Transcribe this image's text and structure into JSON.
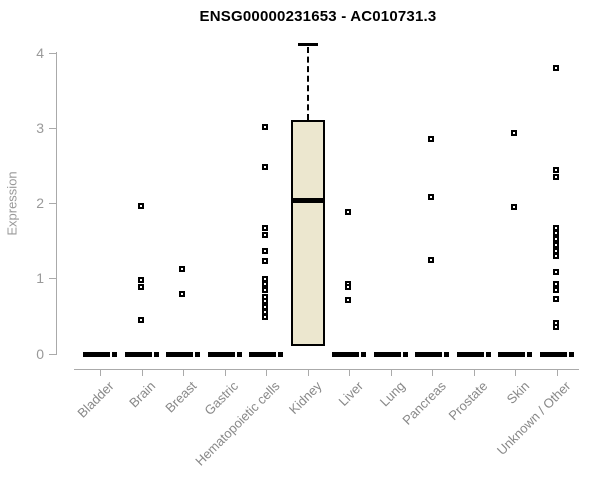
{
  "title": "ENSG00000231653 - AC010731.3",
  "y_axis": {
    "label": "Expression",
    "ticks": [
      "0",
      "1",
      "2",
      "3",
      "4"
    ]
  },
  "colors": {
    "box_fill": "#ECE7CF",
    "box_border": "#000000",
    "median": "#000000",
    "axis": "#AAAAAA",
    "ytick_label": "#999999",
    "category_label": "#888888",
    "title": "#000000",
    "point_border": "#000000",
    "point_fill": "#FFFFFF"
  },
  "chart_data": {
    "type": "boxplot",
    "title": "ENSG00000231653 - AC010731.3",
    "xlabel": "",
    "ylabel": "Expression",
    "ylim": [
      0,
      4
    ],
    "yticks": [
      0,
      1,
      2,
      3,
      4
    ],
    "grid": false,
    "legend_position": "none",
    "categories": [
      "Bladder",
      "Brain",
      "Breast",
      "Gastric",
      "Hematopoietic cells",
      "Kidney",
      "Liver",
      "Lung",
      "Pancreas",
      "Prostate",
      "Skin",
      "Unknown / Other"
    ],
    "boxes": [
      {
        "category": "Bladder",
        "low": 0,
        "q1": 0,
        "median": 0,
        "q3": 0,
        "high": 0
      },
      {
        "category": "Brain",
        "low": 0,
        "q1": 0,
        "median": 0,
        "q3": 0,
        "high": 0
      },
      {
        "category": "Breast",
        "low": 0,
        "q1": 0,
        "median": 0,
        "q3": 0,
        "high": 0
      },
      {
        "category": "Gastric",
        "low": 0,
        "q1": 0,
        "median": 0,
        "q3": 0,
        "high": 0
      },
      {
        "category": "Hematopoietic cells",
        "low": 0,
        "q1": 0,
        "median": 0,
        "q3": 0,
        "high": 0
      },
      {
        "category": "Kidney",
        "low": 0.1,
        "q1": 0.1,
        "median": 2.03,
        "q3": 3.11,
        "high": 4.13
      },
      {
        "category": "Liver",
        "low": 0,
        "q1": 0,
        "median": 0,
        "q3": 0,
        "high": 0
      },
      {
        "category": "Lung",
        "low": 0,
        "q1": 0,
        "median": 0,
        "q3": 0,
        "high": 0
      },
      {
        "category": "Pancreas",
        "low": 0,
        "q1": 0,
        "median": 0,
        "q3": 0,
        "high": 0
      },
      {
        "category": "Prostate",
        "low": 0,
        "q1": 0,
        "median": 0,
        "q3": 0,
        "high": 0
      },
      {
        "category": "Skin",
        "low": 0,
        "q1": 0,
        "median": 0,
        "q3": 0,
        "high": 0
      },
      {
        "category": "Unknown / Other",
        "low": 0,
        "q1": 0,
        "median": 0,
        "q3": 0,
        "high": 0
      }
    ],
    "outlier_points": [
      {
        "category": "Brain",
        "values": [
          1.96,
          0.98,
          0.89,
          0.44
        ]
      },
      {
        "category": "Breast",
        "values": [
          1.12,
          0.79
        ]
      },
      {
        "category": "Hematopoietic cells",
        "values": [
          3.02,
          2.48,
          1.67,
          1.58,
          1.36,
          1.23,
          0.99,
          0.92,
          0.85,
          0.75,
          0.7,
          0.62,
          0.55,
          0.48
        ]
      },
      {
        "category": "Liver",
        "values": [
          1.88,
          0.93,
          0.89,
          0.71
        ]
      },
      {
        "category": "Pancreas",
        "values": [
          2.85,
          2.08,
          1.24
        ]
      },
      {
        "category": "Skin",
        "values": [
          2.94,
          1.95
        ]
      },
      {
        "category": "Unknown / Other",
        "values": [
          3.8,
          2.44,
          2.35,
          1.67,
          1.6,
          1.52,
          1.45,
          1.37,
          1.3,
          1.08,
          0.93,
          0.85,
          0.73,
          0.41,
          0.35
        ]
      }
    ]
  }
}
